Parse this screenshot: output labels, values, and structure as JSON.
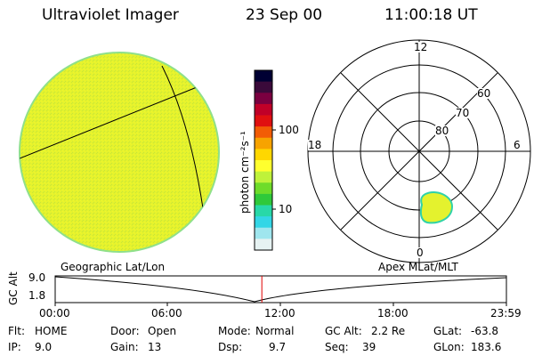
{
  "header": {
    "title": "Ultraviolet Imager",
    "date": "23 Sep 00",
    "time": "11:00:18 UT"
  },
  "colorbar": {
    "unit_label": "photon cm⁻²s⁻¹",
    "tick_labels": [
      "100",
      "10"
    ],
    "colors": [
      "#000033",
      "#3a0a3a",
      "#7a0040",
      "#c00028",
      "#e01010",
      "#f25c05",
      "#f7a300",
      "#ffd700",
      "#ffff2e",
      "#bff23a",
      "#6edc2a",
      "#2fc93a",
      "#28d8a8",
      "#33d6e6",
      "#9fe6ee",
      "#e6f2f2"
    ]
  },
  "polar_plot": {
    "mlt_labels": {
      "top": "12",
      "left": "18",
      "right": "6",
      "bottom": "0"
    },
    "lat_labels": [
      "60",
      "70",
      "80"
    ]
  },
  "timeline": {
    "left_caption": "Geographic Lat/Lon",
    "right_caption": "Apex MLat/MLT",
    "axis_title": "GC Alt",
    "y_ticks": [
      "9.0",
      "1.8"
    ],
    "x_ticks": [
      "00:00",
      "06:00",
      "12:00",
      "18:00",
      "23:59"
    ],
    "current_time_fraction": 0.458
  },
  "status": {
    "filter_label": "Flt:",
    "filter_value": "HOME",
    "ip_label": "IP:",
    "ip_value": "9.0",
    "door_label": "Door:",
    "door_value": "Open",
    "gain_label": "Gain:",
    "gain_value": "13",
    "mode_label": "Mode:",
    "mode_value": "Normal",
    "dsp_label": "Dsp:",
    "dsp_value": "9.7",
    "gcalt_label": "GC Alt:",
    "gcalt_value": "2.2 Re",
    "seq_label": "Seq:",
    "seq_value": "39",
    "glat_label": "GLat:",
    "glat_value": "-63.8",
    "glon_label": "GLon:",
    "glon_value": "183.6"
  }
}
